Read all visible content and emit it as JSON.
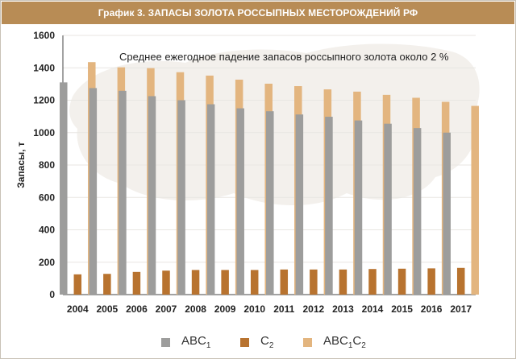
{
  "header": {
    "title": "График 3. ЗАПАСЫ ЗОЛОТА РОССЫПНЫХ МЕСТОРОЖДЕНИЙ РФ"
  },
  "colors": {
    "header_bg": "#b88c55",
    "abc1": "#9d9d9c",
    "c2": "#b8732f",
    "abc1c2": "#e3b57f",
    "grid": "#e8e6e2",
    "axis": "#444444",
    "map_fill": "#efebe5"
  },
  "chart_data": {
    "type": "bar",
    "annotation": "Среднее ежегодное падение запасов россыпного золота около 2 %",
    "ylabel": "Запасы, т",
    "xlabel": "",
    "ylim": [
      0,
      1600
    ],
    "yticks": [
      0,
      200,
      400,
      600,
      800,
      1000,
      1200,
      1400,
      1600
    ],
    "grid": true,
    "legend_position": "bottom",
    "categories": [
      "2004",
      "2005",
      "2006",
      "2007",
      "2008",
      "2009",
      "2010",
      "2011",
      "2012",
      "2013",
      "2014",
      "2015",
      "2016",
      "2017"
    ],
    "series": [
      {
        "name": "ABC1",
        "label_base": "ABC",
        "label_sub": "1",
        "color": "#9d9d9c",
        "values": [
          1310,
          1275,
          1258,
          1225,
          1200,
          1175,
          1150,
          1132,
          1112,
          1098,
          1075,
          1055,
          1028,
          1000
        ]
      },
      {
        "name": "C2",
        "label_base": "C",
        "label_sub": "2",
        "color": "#b8732f",
        "values": [
          125,
          128,
          140,
          148,
          152,
          152,
          152,
          155,
          155,
          155,
          158,
          160,
          162,
          165
        ]
      },
      {
        "name": "ABC1C2",
        "label_base": "ABC",
        "label_sub": "1",
        "label_mid": "C",
        "label_sub2": "2",
        "color": "#e3b57f",
        "values": [
          1435,
          1403,
          1398,
          1373,
          1352,
          1327,
          1302,
          1287,
          1267,
          1253,
          1233,
          1215,
          1190,
          1165
        ]
      }
    ]
  }
}
